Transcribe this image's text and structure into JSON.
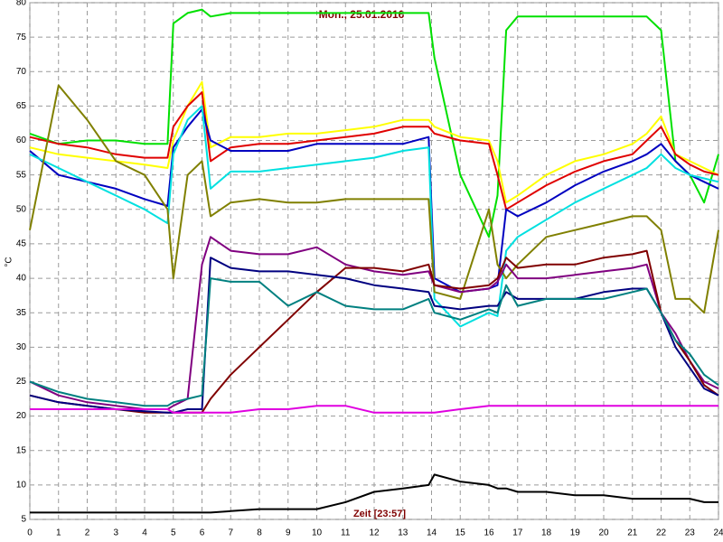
{
  "chart_data": {
    "type": "line",
    "title": "Mon., 25.01.2016",
    "x_label": "Zeit [23:57]",
    "y_label": "°C",
    "xlim": [
      0,
      24
    ],
    "ylim": [
      5,
      80
    ],
    "xticks": [
      0,
      1,
      2,
      3,
      4,
      5,
      6,
      7,
      8,
      9,
      10,
      11,
      12,
      13,
      14,
      15,
      16,
      17,
      18,
      19,
      20,
      21,
      22,
      23,
      24
    ],
    "yticks": [
      5,
      10,
      15,
      20,
      25,
      30,
      35,
      40,
      45,
      50,
      55,
      60,
      65,
      70,
      75,
      80
    ],
    "grid": true,
    "x": [
      0,
      1,
      2,
      3,
      4,
      4.8,
      5,
      5.5,
      6,
      6.3,
      7,
      8,
      9,
      10,
      11,
      12,
      13,
      13.9,
      14.1,
      15,
      16,
      16.3,
      16.6,
      17,
      18,
      19,
      20,
      21,
      21.5,
      22,
      22.5,
      23,
      23.5,
      24
    ],
    "series": [
      {
        "color": "#00e000",
        "values": [
          61,
          59.5,
          60,
          60,
          59.5,
          59.5,
          77,
          78.5,
          79,
          78,
          78.5,
          78.5,
          78.5,
          78.5,
          78.5,
          78.5,
          78.5,
          78.5,
          72,
          55,
          46,
          52,
          76,
          78,
          78,
          78,
          78,
          78,
          78,
          76,
          57,
          55,
          51,
          58
        ]
      },
      {
        "color": "#ffff00",
        "values": [
          59,
          58,
          57.5,
          57,
          56.5,
          56,
          60,
          65,
          68.5,
          59,
          60.5,
          60.5,
          61,
          61,
          61.5,
          62,
          63,
          63,
          62,
          60.5,
          60,
          57,
          51,
          52,
          55,
          57,
          58,
          59.5,
          61,
          63.5,
          58,
          57,
          56,
          55
        ]
      },
      {
        "color": "#e00000",
        "values": [
          60.5,
          59.5,
          59,
          58,
          57.5,
          57.5,
          62,
          65,
          67,
          57,
          59,
          59.5,
          59.5,
          60,
          60.5,
          61,
          62,
          62,
          61,
          60,
          59.5,
          55,
          50,
          51,
          53.5,
          55.5,
          57,
          58,
          60,
          62,
          58,
          56.5,
          55.5,
          55
        ]
      },
      {
        "color": "#0000c0",
        "values": [
          58.5,
          55,
          54,
          53,
          51.5,
          50.5,
          59,
          62,
          64.5,
          60,
          58.5,
          58.5,
          58.5,
          59.5,
          59.5,
          59.5,
          59.5,
          60.5,
          40,
          38,
          38.5,
          39,
          50,
          49,
          51,
          53.5,
          55.5,
          57,
          58,
          59.5,
          57,
          55,
          54,
          53
        ]
      },
      {
        "color": "#00e0e0",
        "values": [
          58,
          56,
          54,
          52,
          50,
          48,
          58,
          63,
          65,
          53,
          55.5,
          55.5,
          56,
          56.5,
          57,
          57.5,
          58.5,
          59,
          37,
          33,
          35,
          34.5,
          44,
          46,
          48.5,
          51,
          53,
          55,
          56,
          58,
          56,
          55,
          54.5,
          54
        ]
      },
      {
        "color": "#808000",
        "values": [
          47,
          68,
          63,
          57,
          55,
          50,
          40,
          55,
          57,
          49,
          51,
          51.5,
          51,
          51,
          51.5,
          51.5,
          51.5,
          51.5,
          38,
          37,
          50,
          42,
          40,
          42,
          46,
          47,
          48,
          49,
          49,
          47,
          37,
          37,
          35,
          47
        ]
      },
      {
        "color": "#800080",
        "values": [
          25,
          23,
          22,
          21.5,
          21,
          21,
          21.5,
          22.5,
          42,
          46,
          44,
          43.5,
          43.5,
          44.5,
          42,
          41,
          40.5,
          41,
          39,
          38,
          38.5,
          39.5,
          42,
          40,
          40,
          40.5,
          41,
          41.5,
          42,
          35,
          32,
          28,
          25,
          24
        ]
      },
      {
        "color": "#800000",
        "values": [
          23,
          22,
          21.5,
          21,
          20.5,
          20.5,
          20.5,
          20.5,
          20.5,
          22.5,
          26,
          30,
          34,
          38,
          41.5,
          41.5,
          41,
          42,
          39,
          38.5,
          39,
          40,
          43,
          41.5,
          42,
          42,
          43,
          43.5,
          44,
          35,
          31,
          28,
          24.5,
          23
        ]
      },
      {
        "color": "#000080",
        "values": [
          23,
          22,
          21.5,
          21,
          20.7,
          20.5,
          20.5,
          21,
          21,
          43,
          41.5,
          41,
          41,
          40.5,
          40,
          39,
          38.5,
          38,
          36,
          35.5,
          36,
          36,
          38,
          37,
          37,
          37,
          38,
          38.5,
          38.5,
          35,
          30,
          27,
          24,
          23
        ]
      },
      {
        "color": "#008080",
        "values": [
          25,
          23.5,
          22.5,
          22,
          21.5,
          21.5,
          22,
          22.5,
          23,
          40,
          39.5,
          39.5,
          36,
          38,
          36,
          35.5,
          35.5,
          37,
          35,
          34,
          35.5,
          35,
          39,
          36,
          37,
          37,
          37,
          38,
          38.5,
          35,
          31,
          29,
          26,
          24.5
        ]
      },
      {
        "color": "#e000e0",
        "values": [
          21,
          21,
          21,
          21,
          21,
          21,
          20.5,
          20.5,
          20.5,
          20.5,
          20.5,
          21,
          21,
          21.5,
          21.5,
          20.5,
          20.5,
          20.5,
          20.5,
          21,
          21.5,
          21.5,
          21.5,
          21.5,
          21.5,
          21.5,
          21.5,
          21.5,
          21.5,
          21.5,
          21.5,
          21.5,
          21.5,
          21.5
        ]
      },
      {
        "color": "#000000",
        "values": [
          6,
          6,
          6,
          6,
          6,
          6,
          6,
          6,
          6,
          6,
          6.2,
          6.5,
          6.5,
          6.5,
          7.5,
          9,
          9.5,
          10,
          11.5,
          10.5,
          10,
          9.5,
          9.5,
          9,
          9,
          8.5,
          8.5,
          8,
          8,
          8,
          8,
          8,
          7.5,
          7.5
        ]
      }
    ]
  }
}
